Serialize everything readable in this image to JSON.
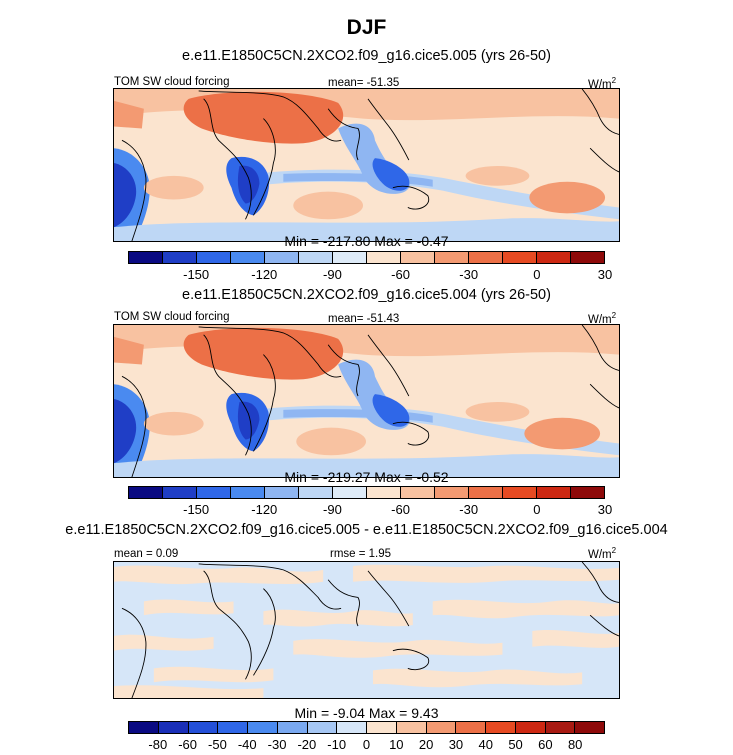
{
  "figure": {
    "title": "DJF",
    "panels": [
      {
        "title": "e.e11.E1850C5CN.2XCO2.f09_g16.cice5.005 (yrs 26-50)",
        "left_label": "TOM SW cloud forcing",
        "center_label": "mean= -51.35",
        "units": "W/m",
        "units_exp": "2",
        "minmax": "Min = -217.80 Max =  -0.47",
        "colorbar_ticks": [
          "-150",
          "-120",
          "-90",
          "-60",
          "-30",
          "0",
          "30"
        ],
        "colorbar_colors": [
          "#0a0a82",
          "#1f3ec6",
          "#2f67e8",
          "#4a8af0",
          "#8fb6f2",
          "#bed7f5",
          "#deebf8",
          "#fbe4cf",
          "#f8c2a1",
          "#f39a72",
          "#ec7047",
          "#e64a22",
          "#cd2812",
          "#8e0a0a"
        ]
      },
      {
        "title": "e.e11.E1850C5CN.2XCO2.f09_g16.cice5.004 (yrs 26-50)",
        "left_label": "TOM SW cloud forcing",
        "center_label": "mean= -51.43",
        "units": "W/m",
        "units_exp": "2",
        "minmax": "Min = -219.27 Max =  -0.52",
        "colorbar_ticks": [
          "-150",
          "-120",
          "-90",
          "-60",
          "-30",
          "0",
          "30"
        ],
        "colorbar_colors": [
          "#0a0a82",
          "#1f3ec6",
          "#2f67e8",
          "#4a8af0",
          "#8fb6f2",
          "#bed7f5",
          "#deebf8",
          "#fbe4cf",
          "#f8c2a1",
          "#f39a72",
          "#ec7047",
          "#e64a22",
          "#cd2812",
          "#8e0a0a"
        ]
      },
      {
        "title": "e.e11.E1850C5CN.2XCO2.f09_g16.cice5.005 - e.e11.E1850C5CN.2XCO2.f09_g16.cice5.004",
        "left_label": "mean =  0.09",
        "center_label": "rmse =  1.95",
        "units": "W/m",
        "units_exp": "2",
        "minmax": "Min =  -9.04 Max =  9.43",
        "colorbar_ticks": [
          "-80",
          "-60",
          "-50",
          "-40",
          "-30",
          "-20",
          "-10",
          "0",
          "10",
          "20",
          "30",
          "40",
          "50",
          "60",
          "80"
        ],
        "colorbar_colors": [
          "#0a0a82",
          "#1a2fb8",
          "#2450d8",
          "#2f67e8",
          "#4a8af0",
          "#7aa9f1",
          "#a6c7f4",
          "#d6e6f8",
          "#fbe4cf",
          "#f8c2a1",
          "#f39a72",
          "#ec7047",
          "#e64a22",
          "#cd2812",
          "#a81a12",
          "#8e0a0a"
        ]
      }
    ]
  }
}
